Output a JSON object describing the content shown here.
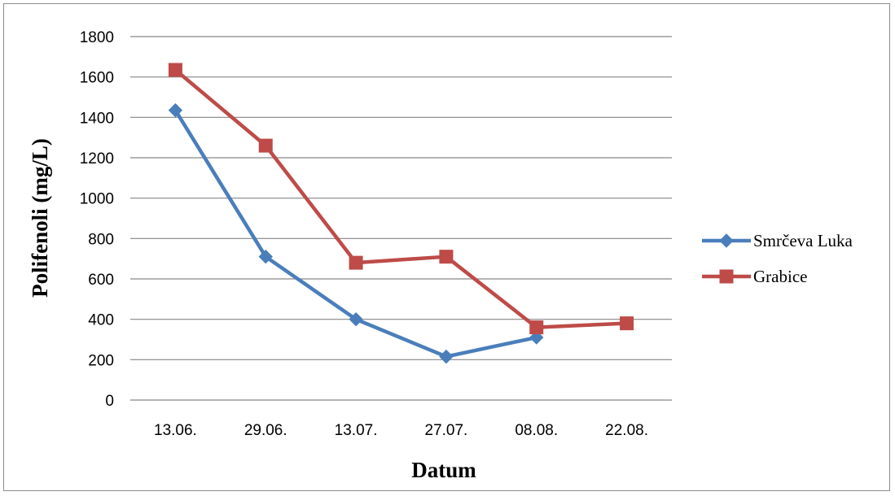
{
  "chart_data": {
    "type": "line",
    "title": "",
    "xlabel": "Datum",
    "ylabel": "Polifenoli (mg/L)",
    "categories": [
      "13.06.",
      "29.06.",
      "13.07.",
      "27.07.",
      "08.08.",
      "22.08."
    ],
    "ylim": [
      0,
      1800
    ],
    "yticks": [
      0,
      200,
      400,
      600,
      800,
      1000,
      1200,
      1400,
      1600,
      1800
    ],
    "grid": true,
    "legend_position": "right",
    "series": [
      {
        "name": "Smrčeva Luka",
        "color": "#4a7ebb",
        "marker": "diamond",
        "values": [
          1435,
          710,
          400,
          215,
          310,
          null
        ]
      },
      {
        "name": "Grabice",
        "color": "#be4b48",
        "marker": "square",
        "values": [
          1635,
          1260,
          680,
          710,
          360,
          380
        ]
      }
    ]
  }
}
